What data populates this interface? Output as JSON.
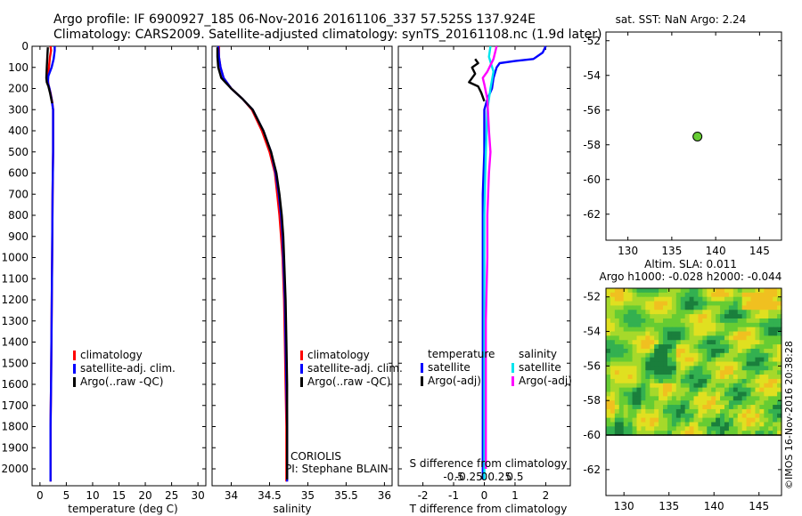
{
  "header": {
    "line1": "Argo profile: IF 6900927_185 06-Nov-2016 20161106_337 57.525S 137.924E",
    "line2": "Climatology: CARS2009. Satellite-adjusted climatology: synTS_20161108.nc (1.9d later)"
  },
  "watermark": "©IMOS 16-Nov-2016 20:38:28",
  "colors": {
    "climatology": "#ff0000",
    "satellite": "#0000ff",
    "argo": "#000000",
    "sal_satellite": "#00e5ee",
    "sal_argo": "#ff00ff",
    "map_dot": "#66cc33"
  },
  "depth_axis": {
    "ticks": [
      0,
      100,
      200,
      300,
      400,
      500,
      600,
      700,
      800,
      900,
      1000,
      1100,
      1200,
      1300,
      1400,
      1500,
      1600,
      1700,
      1800,
      1900,
      2000
    ],
    "ylim": [
      0,
      2080
    ],
    "reversed": true
  },
  "chart_data": [
    {
      "id": "temperature",
      "type": "line",
      "xlabel": "temperature (deg C)",
      "xlim": [
        -1.5,
        31.5
      ],
      "xticks": [
        0,
        5,
        10,
        15,
        20,
        25,
        30
      ],
      "legend": [
        "climatology",
        "satellite-adj. clim.",
        "Argo(..raw -QC)"
      ],
      "series": [
        {
          "name": "climatology",
          "color": "#ff0000",
          "points": [
            [
              2.0,
              0
            ],
            [
              2.1,
              20
            ],
            [
              1.9,
              50
            ],
            [
              1.7,
              100
            ],
            [
              1.5,
              150
            ],
            [
              1.6,
              180
            ],
            [
              2.0,
              220
            ],
            [
              2.3,
              260
            ],
            [
              2.5,
              300
            ],
            [
              2.5,
              400
            ],
            [
              2.5,
              500
            ],
            [
              2.4,
              700
            ],
            [
              2.3,
              1000
            ],
            [
              2.2,
              1300
            ],
            [
              2.1,
              1600
            ],
            [
              2.0,
              1800
            ],
            [
              2.0,
              2000
            ],
            [
              2.0,
              2060
            ]
          ]
        },
        {
          "name": "satellite-adj. clim.",
          "color": "#0000ff",
          "points": [
            [
              2.8,
              0
            ],
            [
              2.8,
              20
            ],
            [
              2.6,
              60
            ],
            [
              2.2,
              100
            ],
            [
              1.6,
              140
            ],
            [
              1.5,
              170
            ],
            [
              1.8,
              200
            ],
            [
              2.2,
              250
            ],
            [
              2.5,
              300
            ],
            [
              2.5,
              400
            ],
            [
              2.5,
              500
            ],
            [
              2.4,
              700
            ],
            [
              2.3,
              1000
            ],
            [
              2.2,
              1300
            ],
            [
              2.1,
              1600
            ],
            [
              2.0,
              1800
            ],
            [
              2.0,
              2000
            ],
            [
              2.0,
              2060
            ]
          ]
        },
        {
          "name": "Argo(..raw -QC)",
          "color": "#000000",
          "points": [
            [
              1.5,
              5
            ],
            [
              1.4,
              50
            ],
            [
              1.3,
              100
            ],
            [
              1.2,
              150
            ],
            [
              1.3,
              170
            ],
            [
              1.6,
              190
            ],
            [
              1.9,
              220
            ],
            [
              2.3,
              270
            ]
          ]
        }
      ],
      "annotations": []
    },
    {
      "id": "salinity",
      "type": "line",
      "xlabel": "salinity",
      "xlim": [
        33.75,
        36.1
      ],
      "xticks": [
        34,
        34.5,
        35,
        35.5,
        36
      ],
      "legend": [
        "climatology",
        "satellite-adj. clim.",
        "Argo(..raw -QC)"
      ],
      "series": [
        {
          "name": "climatology",
          "color": "#ff0000",
          "points": [
            [
              33.84,
              0
            ],
            [
              33.84,
              50
            ],
            [
              33.86,
              100
            ],
            [
              33.9,
              150
            ],
            [
              34.0,
              200
            ],
            [
              34.15,
              250
            ],
            [
              34.27,
              300
            ],
            [
              34.4,
              400
            ],
            [
              34.5,
              500
            ],
            [
              34.57,
              600
            ],
            [
              34.6,
              700
            ],
            [
              34.63,
              800
            ],
            [
              34.65,
              900
            ],
            [
              34.67,
              1000
            ],
            [
              34.69,
              1200
            ],
            [
              34.7,
              1400
            ],
            [
              34.71,
              1600
            ],
            [
              34.72,
              1800
            ],
            [
              34.72,
              2000
            ],
            [
              34.72,
              2060
            ]
          ]
        },
        {
          "name": "satellite-adj. clim.",
          "color": "#0000ff",
          "points": [
            [
              33.83,
              0
            ],
            [
              33.84,
              50
            ],
            [
              33.86,
              100
            ],
            [
              33.9,
              150
            ],
            [
              34.0,
              200
            ],
            [
              34.15,
              250
            ],
            [
              34.28,
              300
            ],
            [
              34.42,
              400
            ],
            [
              34.52,
              500
            ],
            [
              34.58,
              600
            ],
            [
              34.62,
              700
            ],
            [
              34.65,
              800
            ],
            [
              34.67,
              900
            ],
            [
              34.68,
              1000
            ],
            [
              34.7,
              1200
            ],
            [
              34.71,
              1400
            ],
            [
              34.72,
              1600
            ],
            [
              34.73,
              1800
            ],
            [
              34.73,
              2000
            ],
            [
              34.73,
              2060
            ]
          ]
        },
        {
          "name": "Argo(..raw -QC)",
          "color": "#000000",
          "points": [
            [
              33.82,
              5
            ],
            [
              33.82,
              50
            ],
            [
              33.83,
              100
            ],
            [
              33.87,
              150
            ],
            [
              34.0,
              200
            ],
            [
              34.15,
              250
            ],
            [
              34.28,
              300
            ],
            [
              34.42,
              400
            ],
            [
              34.52,
              500
            ],
            [
              34.59,
              600
            ],
            [
              34.63,
              700
            ],
            [
              34.66,
              800
            ],
            [
              34.68,
              900
            ],
            [
              34.69,
              1000
            ],
            [
              34.71,
              1200
            ],
            [
              34.72,
              1400
            ],
            [
              34.73,
              1600
            ],
            [
              34.73,
              1800
            ],
            [
              34.73,
              2000
            ],
            [
              34.73,
              2050
            ]
          ]
        }
      ],
      "annotations": [
        "CORIOLIS",
        "PI: Stephane BLAIN"
      ]
    },
    {
      "id": "difference",
      "type": "line",
      "xlabel": "T difference from climatology",
      "xlabel_top": "S difference from climatology",
      "xlim": [
        -2.8,
        2.8
      ],
      "xticks_bottom": [
        -2,
        -1,
        0,
        1,
        2
      ],
      "xticks_top_labels": [
        "-0.5",
        "-0.25",
        "0",
        "0.25",
        "0.5"
      ],
      "legend_headers": [
        "temperature",
        "salinity"
      ],
      "legend": [
        "satellite",
        "Argo(-adj)",
        "satellite",
        "Argo(-adj)"
      ],
      "series": [
        {
          "name": "temperature satellite",
          "color": "#0000ff",
          "points": [
            [
              2.0,
              0
            ],
            [
              1.9,
              30
            ],
            [
              1.6,
              60
            ],
            [
              1.0,
              70
            ],
            [
              0.5,
              80
            ],
            [
              0.4,
              100
            ],
            [
              0.3,
              150
            ],
            [
              0.25,
              200
            ],
            [
              0.1,
              250
            ],
            [
              0.0,
              300
            ],
            [
              0.0,
              500
            ],
            [
              -0.05,
              700
            ],
            [
              -0.05,
              1000
            ],
            [
              -0.05,
              1500
            ],
            [
              -0.05,
              2050
            ]
          ]
        },
        {
          "name": "temperature Argo(-adj)",
          "color": "#000000",
          "points": [
            [
              -0.3,
              60
            ],
            [
              -0.2,
              80
            ],
            [
              -0.4,
              100
            ],
            [
              -0.3,
              130
            ],
            [
              -0.5,
              170
            ],
            [
              -0.2,
              190
            ],
            [
              -0.1,
              220
            ],
            [
              0.0,
              260
            ]
          ]
        },
        {
          "name": "salinity satellite",
          "color": "#00e5ee",
          "points": [
            [
              0.2,
              0
            ],
            [
              0.15,
              50
            ],
            [
              0.3,
              120
            ],
            [
              0.2,
              200
            ],
            [
              0.1,
              300
            ],
            [
              0.05,
              500
            ],
            [
              0.0,
              800
            ],
            [
              0.0,
              1200
            ],
            [
              0.0,
              1600
            ],
            [
              0.0,
              2050
            ]
          ]
        },
        {
          "name": "salinity Argo(-adj)",
          "color": "#ff00ff",
          "points": [
            [
              0.4,
              0
            ],
            [
              0.3,
              60
            ],
            [
              0.1,
              120
            ],
            [
              -0.05,
              150
            ],
            [
              0.0,
              180
            ],
            [
              0.1,
              250
            ],
            [
              0.15,
              400
            ],
            [
              0.2,
              500
            ],
            [
              0.15,
              600
            ],
            [
              0.1,
              800
            ],
            [
              0.1,
              1000
            ],
            [
              0.05,
              1300
            ],
            [
              0.05,
              1600
            ],
            [
              0.05,
              2000
            ]
          ]
        }
      ]
    },
    {
      "id": "sst_map",
      "type": "scatter",
      "title": "sat. SST: NaN Argo: 2.24",
      "xlim": [
        127.5,
        147.5
      ],
      "ylim": [
        -63.5,
        -51.5
      ],
      "xticks": [
        130,
        135,
        140,
        145
      ],
      "yticks": [
        -52,
        -54,
        -56,
        -58,
        -60,
        -62
      ],
      "points": [
        [
          137.924,
          -57.525
        ]
      ]
    },
    {
      "id": "sla_map",
      "type": "heatmap",
      "title_line1": "Altim. SLA: 0.011",
      "title_line2": "Argo h1000: -0.028 h2000: -0.044",
      "xlim": [
        128,
        147.5
      ],
      "ylim": [
        -63.5,
        -51.5
      ],
      "data_extent": {
        "lon": [
          128,
          147.5
        ],
        "lat": [
          -60,
          -51.5
        ]
      },
      "xticks": [
        130,
        135,
        140,
        145
      ],
      "yticks": [
        -52,
        -54,
        -56,
        -58,
        -60,
        -62
      ],
      "colormap": [
        "#1a7f3c",
        "#33b050",
        "#66cc33",
        "#a6d92b",
        "#e0e020",
        "#f0c020"
      ]
    }
  ]
}
